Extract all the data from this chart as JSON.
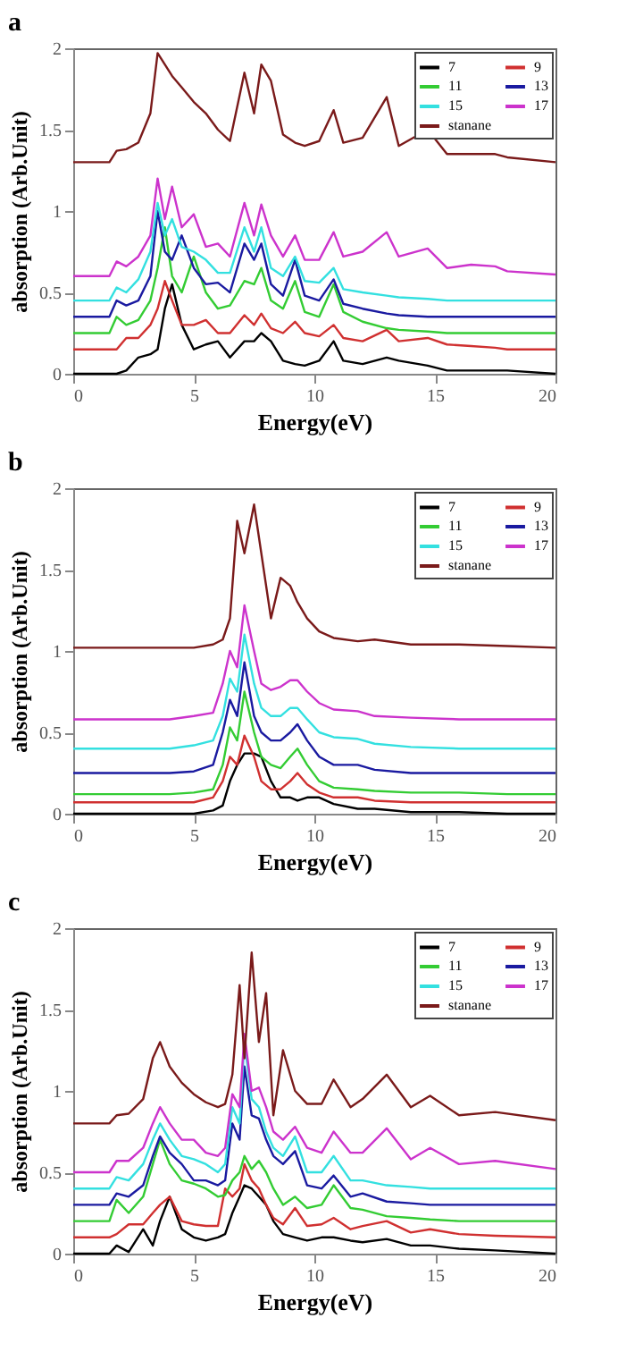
{
  "chart_data": [
    {
      "type": "line",
      "title": "a",
      "xlabel": "Energy(eV)",
      "ylabel": "absorption (Arb.Unit)",
      "xlim": [
        0,
        20
      ],
      "ylim": [
        0,
        2
      ],
      "xticks": [
        0,
        5,
        10,
        15,
        20
      ],
      "yticks": [
        0,
        0.5,
        1,
        1.5,
        2
      ],
      "grid": false,
      "legend": "top right",
      "marker": "none",
      "line_style": "solid",
      "x": [
        0,
        1.5,
        1.8,
        2.2,
        2.7,
        3.2,
        3.5,
        3.8,
        4.1,
        4.5,
        5,
        5.5,
        6,
        6.5,
        7.1,
        7.5,
        7.8,
        8.2,
        8.7,
        9.2,
        9.6,
        10.2,
        10.8,
        11.2,
        12,
        13,
        13.5,
        14.7,
        15.5,
        16.5,
        17.5,
        18,
        20
      ],
      "series": [
        {
          "name": "7",
          "color": "#000000",
          "values": [
            0,
            0,
            0,
            0.02,
            0.1,
            0.12,
            0.15,
            0.4,
            0.55,
            0.3,
            0.15,
            0.18,
            0.2,
            0.1,
            0.2,
            0.2,
            0.25,
            0.2,
            0.08,
            0.06,
            0.05,
            0.08,
            0.2,
            0.08,
            0.06,
            0.1,
            0.08,
            0.05,
            0.02,
            0.02,
            0.02,
            0.02,
            0
          ]
        },
        {
          "name": "9",
          "color": "#d03030",
          "values": [
            0.15,
            0.15,
            0.15,
            0.22,
            0.22,
            0.3,
            0.4,
            0.57,
            0.45,
            0.3,
            0.3,
            0.33,
            0.25,
            0.25,
            0.36,
            0.3,
            0.37,
            0.28,
            0.25,
            0.32,
            0.25,
            0.23,
            0.3,
            0.22,
            0.2,
            0.27,
            0.2,
            0.22,
            0.18,
            0.17,
            0.16,
            0.15,
            0.15
          ]
        },
        {
          "name": "11",
          "color": "#33cc33",
          "values": [
            0.25,
            0.25,
            0.35,
            0.3,
            0.33,
            0.45,
            0.65,
            0.9,
            0.6,
            0.5,
            0.72,
            0.5,
            0.4,
            0.42,
            0.57,
            0.55,
            0.65,
            0.45,
            0.4,
            0.57,
            0.38,
            0.35,
            0.55,
            0.38,
            0.32,
            0.28,
            0.27,
            0.26,
            0.25,
            0.25,
            0.25,
            0.25,
            0.25
          ]
        },
        {
          "name": "13",
          "color": "#1a1aa0",
          "values": [
            0.35,
            0.35,
            0.45,
            0.42,
            0.45,
            0.6,
            1.0,
            0.75,
            0.7,
            0.85,
            0.65,
            0.55,
            0.56,
            0.5,
            0.8,
            0.7,
            0.8,
            0.55,
            0.48,
            0.7,
            0.48,
            0.45,
            0.58,
            0.43,
            0.4,
            0.37,
            0.36,
            0.35,
            0.35,
            0.35,
            0.35,
            0.35,
            0.35
          ]
        },
        {
          "name": "15",
          "color": "#33e0e0",
          "values": [
            0.45,
            0.45,
            0.53,
            0.5,
            0.58,
            0.75,
            1.05,
            0.85,
            0.95,
            0.78,
            0.75,
            0.7,
            0.62,
            0.62,
            0.9,
            0.75,
            0.9,
            0.65,
            0.6,
            0.72,
            0.57,
            0.56,
            0.65,
            0.52,
            0.5,
            0.48,
            0.47,
            0.46,
            0.45,
            0.45,
            0.45,
            0.45,
            0.45
          ]
        },
        {
          "name": "17",
          "color": "#cc33cc",
          "values": [
            0.6,
            0.6,
            0.69,
            0.66,
            0.72,
            0.85,
            1.2,
            0.95,
            1.15,
            0.9,
            0.98,
            0.78,
            0.8,
            0.72,
            1.05,
            0.85,
            1.04,
            0.85,
            0.72,
            0.85,
            0.7,
            0.7,
            0.87,
            0.72,
            0.75,
            0.87,
            0.72,
            0.77,
            0.65,
            0.67,
            0.66,
            0.63,
            0.61
          ]
        },
        {
          "name": "stanane",
          "color": "#7a1a1a",
          "values": [
            1.3,
            1.3,
            1.37,
            1.38,
            1.42,
            1.6,
            1.97,
            1.9,
            1.83,
            1.76,
            1.67,
            1.6,
            1.5,
            1.43,
            1.85,
            1.6,
            1.9,
            1.8,
            1.47,
            1.42,
            1.4,
            1.43,
            1.62,
            1.42,
            1.45,
            1.7,
            1.4,
            1.5,
            1.35,
            1.35,
            1.35,
            1.33,
            1.3
          ]
        }
      ]
    },
    {
      "type": "line",
      "title": "b",
      "xlabel": "Energy(eV)",
      "ylabel": "absorption (Arb.Unit)",
      "xlim": [
        0,
        20
      ],
      "ylim": [
        0,
        2
      ],
      "xticks": [
        0,
        5,
        10,
        15,
        20
      ],
      "yticks": [
        0,
        0.5,
        1,
        1.5,
        2
      ],
      "grid": false,
      "legend": "top right",
      "marker": "none",
      "line_style": "solid",
      "x": [
        0,
        4,
        5,
        5.8,
        6.2,
        6.5,
        6.8,
        7.1,
        7.5,
        7.8,
        8.2,
        8.6,
        9,
        9.3,
        9.7,
        10.2,
        10.8,
        11.8,
        12.5,
        14,
        16,
        18,
        20
      ],
      "series": [
        {
          "name": "7",
          "color": "#000000",
          "values": [
            0,
            0,
            0,
            0.02,
            0.05,
            0.2,
            0.3,
            0.37,
            0.37,
            0.35,
            0.2,
            0.1,
            0.1,
            0.08,
            0.1,
            0.1,
            0.06,
            0.03,
            0.03,
            0.01,
            0.01,
            0,
            0
          ]
        },
        {
          "name": "9",
          "color": "#d03030",
          "values": [
            0.07,
            0.07,
            0.07,
            0.1,
            0.2,
            0.35,
            0.3,
            0.48,
            0.35,
            0.2,
            0.15,
            0.15,
            0.2,
            0.25,
            0.18,
            0.13,
            0.1,
            0.1,
            0.08,
            0.07,
            0.07,
            0.07,
            0.07
          ]
        },
        {
          "name": "11",
          "color": "#33cc33",
          "values": [
            0.12,
            0.12,
            0.13,
            0.15,
            0.3,
            0.53,
            0.45,
            0.75,
            0.5,
            0.35,
            0.3,
            0.28,
            0.35,
            0.4,
            0.3,
            0.2,
            0.16,
            0.15,
            0.14,
            0.13,
            0.13,
            0.12,
            0.12
          ]
        },
        {
          "name": "13",
          "color": "#1a1aa0",
          "values": [
            0.25,
            0.25,
            0.26,
            0.3,
            0.5,
            0.7,
            0.6,
            0.93,
            0.6,
            0.5,
            0.45,
            0.45,
            0.5,
            0.55,
            0.45,
            0.35,
            0.3,
            0.3,
            0.27,
            0.25,
            0.25,
            0.25,
            0.25
          ]
        },
        {
          "name": "15",
          "color": "#33e0e0",
          "values": [
            0.4,
            0.4,
            0.42,
            0.45,
            0.6,
            0.83,
            0.75,
            1.1,
            0.8,
            0.65,
            0.6,
            0.6,
            0.65,
            0.65,
            0.58,
            0.5,
            0.47,
            0.46,
            0.43,
            0.41,
            0.4,
            0.4,
            0.4
          ]
        },
        {
          "name": "17",
          "color": "#cc33cc",
          "values": [
            0.58,
            0.58,
            0.6,
            0.62,
            0.8,
            1.0,
            0.9,
            1.28,
            1.0,
            0.8,
            0.76,
            0.78,
            0.82,
            0.82,
            0.75,
            0.68,
            0.64,
            0.63,
            0.6,
            0.59,
            0.58,
            0.58,
            0.58
          ]
        },
        {
          "name": "stanane",
          "color": "#7a1a1a",
          "values": [
            1.02,
            1.02,
            1.02,
            1.04,
            1.07,
            1.2,
            1.8,
            1.6,
            1.9,
            1.6,
            1.2,
            1.45,
            1.4,
            1.3,
            1.2,
            1.12,
            1.08,
            1.06,
            1.07,
            1.04,
            1.04,
            1.03,
            1.02
          ]
        }
      ]
    },
    {
      "type": "line",
      "title": "c",
      "xlabel": "Energy(eV)",
      "ylabel": "absorption (Arb.Unit)",
      "xlim": [
        0,
        20
      ],
      "ylim": [
        0,
        2
      ],
      "xticks": [
        0,
        5,
        10,
        15,
        20
      ],
      "yticks": [
        0,
        0.5,
        1,
        1.5,
        2
      ],
      "grid": false,
      "legend": "top right",
      "marker": "none",
      "line_style": "solid",
      "x": [
        0,
        1.5,
        1.8,
        2.3,
        2.9,
        3.3,
        3.6,
        4,
        4.5,
        5,
        5.5,
        6,
        6.3,
        6.6,
        6.9,
        7.1,
        7.4,
        7.7,
        8,
        8.3,
        8.7,
        9.2,
        9.7,
        10.3,
        10.8,
        11.5,
        12,
        13,
        14,
        14.8,
        16,
        17.5,
        20
      ],
      "series": [
        {
          "name": "7",
          "color": "#000000",
          "values": [
            0,
            0,
            0.05,
            0.01,
            0.15,
            0.05,
            0.2,
            0.35,
            0.15,
            0.1,
            0.08,
            0.1,
            0.12,
            0.25,
            0.35,
            0.42,
            0.4,
            0.35,
            0.3,
            0.2,
            0.12,
            0.1,
            0.08,
            0.1,
            0.1,
            0.08,
            0.07,
            0.09,
            0.05,
            0.05,
            0.03,
            0.02,
            0
          ]
        },
        {
          "name": "9",
          "color": "#d03030",
          "values": [
            0.1,
            0.1,
            0.12,
            0.18,
            0.18,
            0.25,
            0.3,
            0.35,
            0.2,
            0.18,
            0.17,
            0.17,
            0.4,
            0.35,
            0.4,
            0.55,
            0.45,
            0.4,
            0.3,
            0.22,
            0.18,
            0.28,
            0.17,
            0.18,
            0.22,
            0.15,
            0.17,
            0.2,
            0.13,
            0.15,
            0.12,
            0.11,
            0.1
          ]
        },
        {
          "name": "11",
          "color": "#33cc33",
          "values": [
            0.2,
            0.2,
            0.33,
            0.25,
            0.35,
            0.55,
            0.7,
            0.55,
            0.45,
            0.43,
            0.4,
            0.35,
            0.36,
            0.45,
            0.5,
            0.6,
            0.52,
            0.57,
            0.5,
            0.4,
            0.3,
            0.35,
            0.28,
            0.3,
            0.42,
            0.28,
            0.27,
            0.23,
            0.22,
            0.21,
            0.2,
            0.2,
            0.2
          ]
        },
        {
          "name": "13",
          "color": "#1a1aa0",
          "values": [
            0.3,
            0.3,
            0.37,
            0.35,
            0.42,
            0.6,
            0.72,
            0.62,
            0.55,
            0.45,
            0.45,
            0.42,
            0.45,
            0.8,
            0.7,
            1.15,
            0.85,
            0.83,
            0.7,
            0.6,
            0.55,
            0.63,
            0.42,
            0.4,
            0.48,
            0.35,
            0.37,
            0.32,
            0.31,
            0.3,
            0.3,
            0.3,
            0.3
          ]
        },
        {
          "name": "15",
          "color": "#33e0e0",
          "values": [
            0.4,
            0.4,
            0.47,
            0.45,
            0.55,
            0.7,
            0.8,
            0.7,
            0.6,
            0.58,
            0.55,
            0.5,
            0.55,
            0.9,
            0.8,
            1.3,
            0.95,
            0.9,
            0.75,
            0.65,
            0.6,
            0.72,
            0.5,
            0.5,
            0.6,
            0.45,
            0.45,
            0.42,
            0.41,
            0.4,
            0.4,
            0.4,
            0.4
          ]
        },
        {
          "name": "17",
          "color": "#cc33cc",
          "values": [
            0.5,
            0.5,
            0.57,
            0.57,
            0.65,
            0.8,
            0.9,
            0.8,
            0.7,
            0.7,
            0.62,
            0.6,
            0.65,
            0.98,
            0.9,
            1.35,
            1.0,
            1.02,
            0.9,
            0.75,
            0.7,
            0.78,
            0.65,
            0.62,
            0.75,
            0.62,
            0.62,
            0.77,
            0.58,
            0.65,
            0.55,
            0.57,
            0.52
          ]
        },
        {
          "name": "stanane",
          "color": "#7a1a1a",
          "values": [
            0.8,
            0.8,
            0.85,
            0.86,
            0.95,
            1.2,
            1.3,
            1.15,
            1.05,
            0.98,
            0.93,
            0.9,
            0.92,
            1.1,
            1.65,
            1.2,
            1.85,
            1.3,
            1.6,
            0.85,
            1.25,
            1.0,
            0.92,
            0.92,
            1.07,
            0.9,
            0.95,
            1.1,
            0.9,
            0.97,
            0.85,
            0.87,
            0.82
          ]
        }
      ]
    }
  ]
}
